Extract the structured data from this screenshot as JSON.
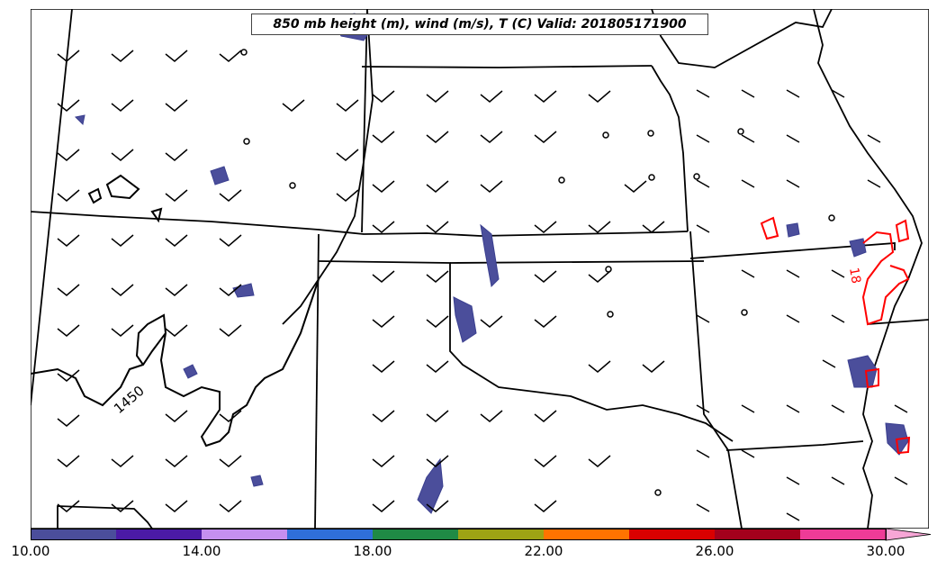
{
  "title": "850 mb height (m), wind (m/s), T (C) Valid: 201805171900",
  "contour_labels": {
    "height": "1450",
    "temperature": "18"
  },
  "colorbar": {
    "colors": [
      "#4b4e9b",
      "#4b1aa6",
      "#c58ff0",
      "#2f6fd9",
      "#1f8a45",
      "#9ea314",
      "#ff7300",
      "#d90000",
      "#a3001c",
      "#ee3b97"
    ],
    "extend_color": "#f7a6d6",
    "ticks": [
      "10.00",
      "14.00",
      "18.00",
      "22.00",
      "26.00",
      "30.00"
    ],
    "range": [
      10,
      31
    ]
  },
  "colors": {
    "height_contour": "#000000",
    "temperature_contour": "#ff0000",
    "precip_fill": "#4b4e9b"
  }
}
